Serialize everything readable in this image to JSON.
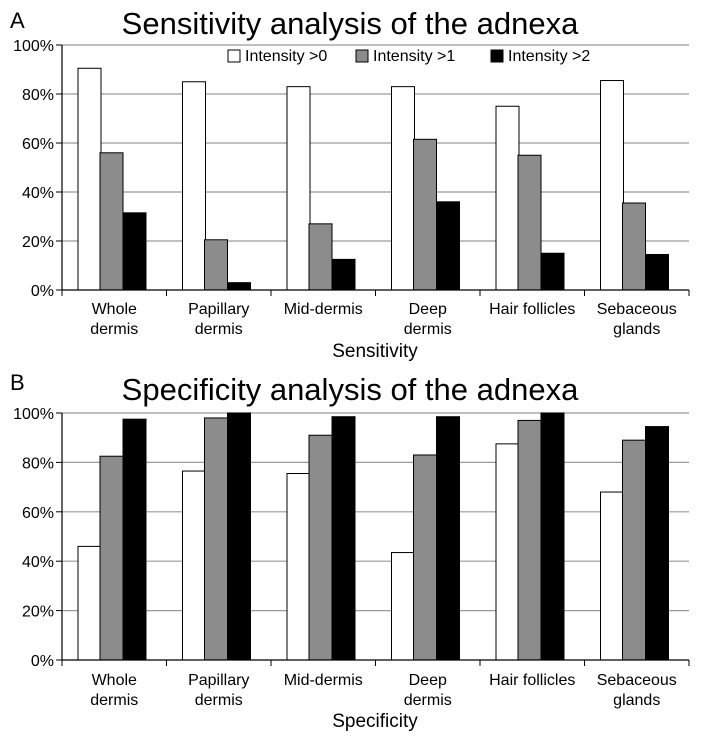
{
  "figure": {
    "colors": {
      "series": [
        "#ffffff",
        "#8c8c8c",
        "#000000"
      ],
      "grid": "#9a9a9a",
      "axis": "#000000"
    }
  },
  "chart_data": [
    {
      "panel_label": "A",
      "type": "bar",
      "title": "Sensitivity analysis of the adnexa",
      "xlabel": "Sensitivity",
      "ylabel": "",
      "ylim": [
        0,
        100
      ],
      "yticks": [
        "0%",
        "20%",
        "40%",
        "60%",
        "80%",
        "100%"
      ],
      "grid": true,
      "legend": "top-right",
      "categories": [
        [
          "Whole",
          "dermis"
        ],
        [
          "Papillary",
          "dermis"
        ],
        [
          "Mid-dermis"
        ],
        [
          "Deep",
          "dermis"
        ],
        [
          "Hair follicles"
        ],
        [
          "Sebaceous",
          "glands"
        ]
      ],
      "series": [
        {
          "name": "Intensity >0",
          "values": [
            90.5,
            85,
            83,
            83,
            75,
            85.5
          ]
        },
        {
          "name": "Intensity >1",
          "values": [
            56,
            20.5,
            27,
            61.5,
            55,
            35.5
          ]
        },
        {
          "name": "Intensity >2",
          "values": [
            31.5,
            3,
            12.5,
            36,
            15,
            14.5
          ]
        }
      ]
    },
    {
      "panel_label": "B",
      "type": "bar",
      "title": "Specificity analysis of the adnexa",
      "xlabel": "Specificity",
      "ylabel": "",
      "ylim": [
        0,
        100
      ],
      "yticks": [
        "0%",
        "20%",
        "40%",
        "60%",
        "80%",
        "100%"
      ],
      "grid": true,
      "legend": "none",
      "categories": [
        [
          "Whole",
          "dermis"
        ],
        [
          "Papillary",
          "dermis"
        ],
        [
          "Mid-dermis"
        ],
        [
          "Deep",
          "dermis"
        ],
        [
          "Hair follicles"
        ],
        [
          "Sebaceous",
          "glands"
        ]
      ],
      "series": [
        {
          "name": "Intensity >0",
          "values": [
            46,
            76.5,
            75.5,
            43.5,
            87.5,
            68
          ]
        },
        {
          "name": "Intensity >1",
          "values": [
            82.5,
            98,
            91,
            83,
            97,
            89
          ]
        },
        {
          "name": "Intensity >2",
          "values": [
            97.5,
            100,
            98.5,
            98.5,
            100,
            94.5
          ]
        }
      ]
    }
  ]
}
